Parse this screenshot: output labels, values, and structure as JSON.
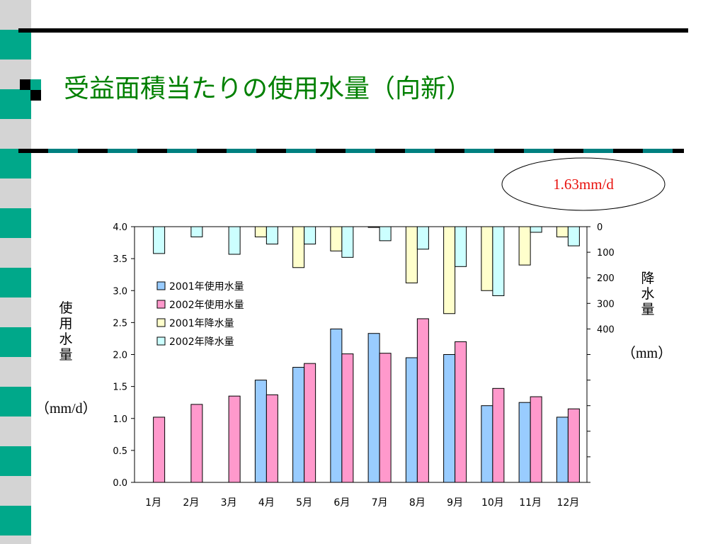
{
  "slide": {
    "title": "受益面積当たりの使用水量（向新）",
    "callout": "1.63mm/d",
    "left_axis_title": [
      "使",
      "用",
      "水",
      "量"
    ],
    "left_axis_unit": "（mm/d）",
    "right_axis_title": [
      "降",
      "水",
      "量"
    ],
    "right_axis_unit": "（mm）",
    "colors": {
      "title": "#008000",
      "teal": "#00a88a",
      "grey": "#d4d4d4",
      "callout_text": "#e8110d"
    }
  },
  "chart_data": {
    "type": "bar",
    "categories": [
      "1月",
      "2月",
      "3月",
      "4月",
      "5月",
      "6月",
      "7月",
      "8月",
      "9月",
      "10月",
      "11月",
      "12月"
    ],
    "left_axis": {
      "ylim": [
        0,
        4.0
      ],
      "ticks": [
        "0.0",
        "0.5",
        "1.0",
        "1.5",
        "2.0",
        "2.5",
        "3.0",
        "3.5",
        "4.0"
      ]
    },
    "right_axis": {
      "ylim": [
        0,
        1000
      ],
      "inverted": true,
      "ticks": [
        "0",
        "100",
        "200",
        "300",
        "400"
      ]
    },
    "legend": [
      "2001年使用水量",
      "2002年使用水量",
      "2001年降水量",
      "2002年降水量"
    ],
    "legend_placement": "upper-left",
    "series": [
      {
        "name": "2001年使用水量",
        "axis": "left",
        "color": "#99ccff",
        "values": [
          null,
          null,
          null,
          1.6,
          1.8,
          2.4,
          2.33,
          1.95,
          2.0,
          1.2,
          1.25,
          1.02
        ]
      },
      {
        "name": "2002年使用水量",
        "axis": "left",
        "color": "#ff99cc",
        "values": [
          1.02,
          1.22,
          1.35,
          1.37,
          1.86,
          2.01,
          2.02,
          2.56,
          2.2,
          1.47,
          1.34,
          1.15
        ]
      },
      {
        "name": "2001年降水量",
        "axis": "right",
        "color": "#ffffcc",
        "values": [
          null,
          null,
          null,
          40,
          160,
          95,
          3,
          220,
          340,
          250,
          150,
          40
        ]
      },
      {
        "name": "2002年降水量",
        "axis": "right",
        "color": "#ccffff",
        "values": [
          105,
          40,
          108,
          68,
          68,
          120,
          55,
          88,
          156,
          270,
          22,
          75
        ]
      }
    ]
  }
}
